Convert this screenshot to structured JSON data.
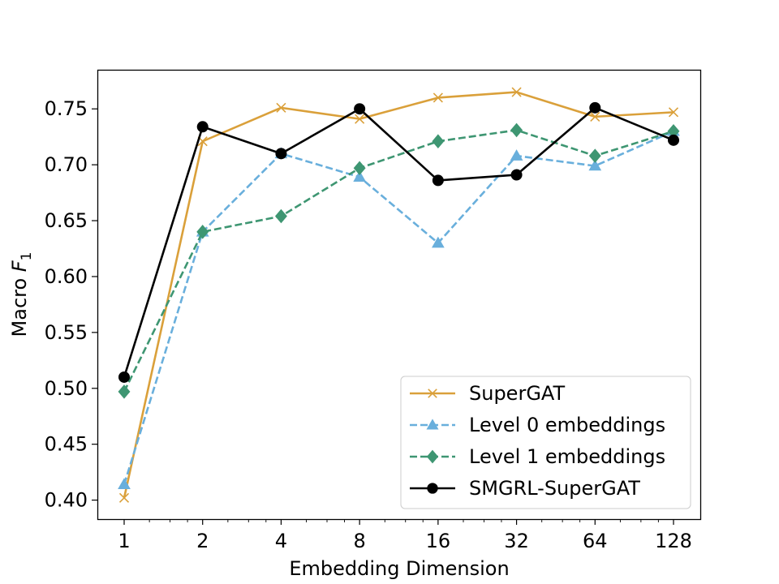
{
  "chart_data": {
    "type": "line",
    "xscale": "log2",
    "x": [
      1,
      2,
      4,
      8,
      16,
      32,
      64,
      128
    ],
    "xtick_labels": [
      "1",
      "2",
      "4",
      "8",
      "16",
      "32",
      "64",
      "128"
    ],
    "xlabel": "Embedding Dimension",
    "ylabel_text": "Macro",
    "ylabel_var": "F",
    "ylabel_sub": "1",
    "ylim": [
      0.383,
      0.785
    ],
    "yticks": [
      0.4,
      0.45,
      0.5,
      0.55,
      0.6,
      0.65,
      0.7,
      0.75
    ],
    "ytick_labels": [
      "0.40",
      "0.45",
      "0.50",
      "0.55",
      "0.60",
      "0.65",
      "0.70",
      "0.75"
    ],
    "legend_position": "bottom-right",
    "series": [
      {
        "name": "SuperGAT",
        "color": "#DAA03A",
        "dash": "solid",
        "marker": "x",
        "values": [
          0.402,
          0.721,
          0.751,
          0.741,
          0.76,
          0.765,
          0.743,
          0.747
        ]
      },
      {
        "name": "Level 0 embeddings",
        "color": "#69AFDC",
        "dash": "dashed",
        "marker": "triangle",
        "values": [
          0.414,
          0.64,
          0.71,
          0.689,
          0.63,
          0.708,
          0.699,
          0.73
        ]
      },
      {
        "name": "Level 1 embeddings",
        "color": "#3E9672",
        "dash": "dashed",
        "marker": "diamond",
        "values": [
          0.497,
          0.64,
          0.654,
          0.697,
          0.721,
          0.731,
          0.708,
          0.73
        ]
      },
      {
        "name": "SMGRL-SuperGAT",
        "color": "#000000",
        "dash": "solid",
        "marker": "circle",
        "values": [
          0.51,
          0.734,
          0.71,
          0.75,
          0.686,
          0.691,
          0.751,
          0.722
        ]
      }
    ]
  }
}
